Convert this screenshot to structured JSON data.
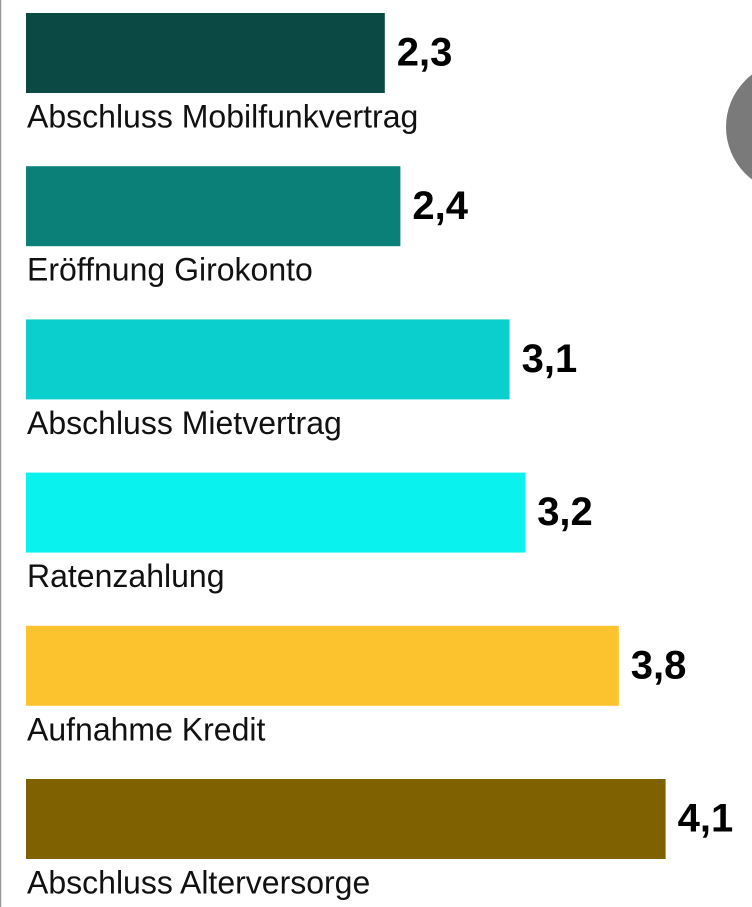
{
  "chart_data": {
    "type": "bar",
    "orientation": "horizontal",
    "categories": [
      "Abschluss Mobilfunkvertrag",
      "Eröffnung Girokonto",
      "Abschluss Mietvertrag",
      "Ratenzahlung",
      "Aufnahme Kredit",
      "Abschluss Alterversorge"
    ],
    "values": [
      2.3,
      2.4,
      3.1,
      3.2,
      3.8,
      4.1
    ],
    "value_labels": [
      "2,3",
      "2,4",
      "3,1",
      "3,2",
      "3,8",
      "4,1"
    ],
    "colors": [
      "#0b4a44",
      "#0a8079",
      "#0bcfcd",
      "#0af2ee",
      "#fdc32f",
      "#7f6101"
    ]
  }
}
